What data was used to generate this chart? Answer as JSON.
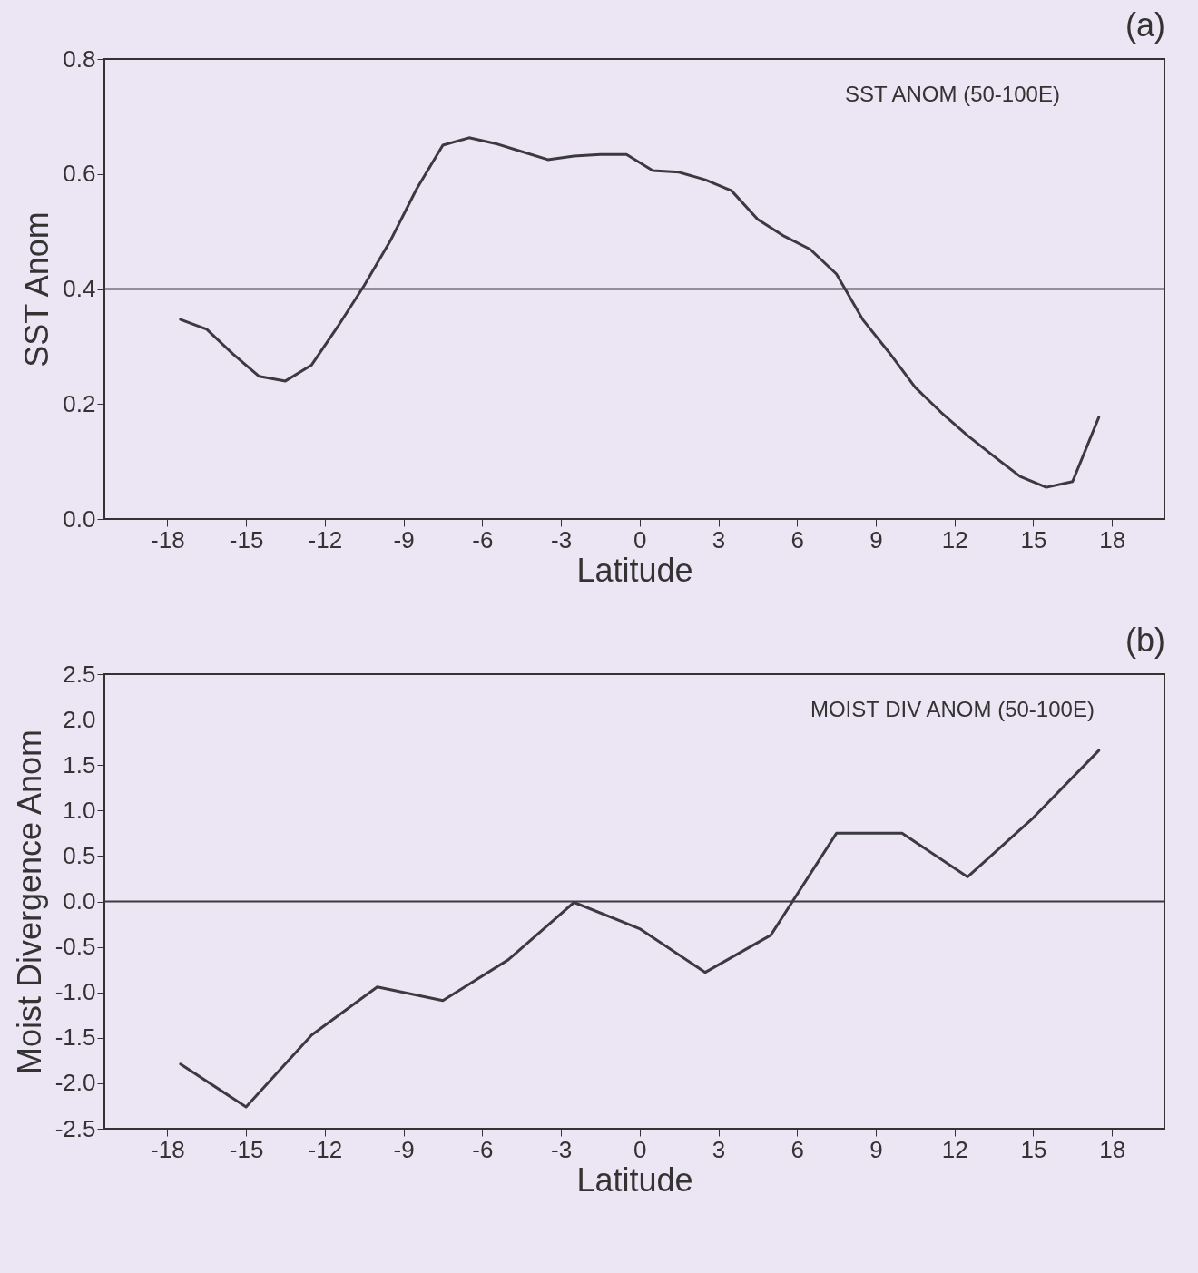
{
  "chart_data": [
    {
      "type": "line",
      "title": "(a)",
      "xlabel": "Latitude",
      "ylabel": "SST Anom",
      "annotations": [
        "SST ANOM (50-100E)"
      ],
      "x": [
        -17.5,
        -16.5,
        -15.5,
        -14.5,
        -13.5,
        -12.5,
        -11.5,
        -10.5,
        -9.5,
        -8.5,
        -7.5,
        -6.5,
        -5.5,
        -4.5,
        -3.5,
        -2.5,
        -1.5,
        -0.5,
        0.5,
        1.5,
        2.5,
        3.5,
        4.5,
        5.5,
        6.5,
        7.5,
        8.5,
        9.5,
        10.5,
        11.5,
        12.5,
        13.5,
        14.5,
        15.5,
        16.5,
        17.5
      ],
      "series": [
        {
          "color": "#3a3a40",
          "values": [
            0.347,
            0.33,
            0.287,
            0.248,
            0.24,
            0.268,
            0.335,
            0.406,
            0.484,
            0.574,
            0.65,
            0.663,
            0.653,
            0.639,
            0.625,
            0.631,
            0.634,
            0.634,
            0.606,
            0.603,
            0.59,
            0.571,
            0.521,
            0.492,
            0.469,
            0.426,
            0.347,
            0.29,
            0.229,
            0.185,
            0.145,
            0.109,
            0.074,
            0.055,
            0.065,
            0.177
          ]
        }
      ],
      "xlim": [
        -20.4,
        20
      ],
      "xticks": [
        -18,
        -15,
        -12,
        -9,
        -6,
        -3,
        0,
        3,
        6,
        9,
        12,
        15,
        18
      ],
      "ylim": [
        0,
        0.8
      ],
      "yticks": [
        {
          "value": 0,
          "label": "0.0"
        },
        0.2,
        0.4,
        0.6,
        0.8
      ],
      "ref_lines": [
        {
          "axis": "y",
          "value": 0.4,
          "color": "#3a3a40"
        }
      ],
      "grid": false
    },
    {
      "type": "line",
      "title": "(b)",
      "xlabel": "Latitude",
      "ylabel": "Moist Divergence Anom",
      "annotations": [
        "MOIST DIV ANOM (50-100E)"
      ],
      "x": [
        -17.5,
        -15,
        -12.5,
        -10,
        -7.5,
        -5,
        -2.5,
        0,
        2.5,
        5,
        7.5,
        10,
        12.5,
        15,
        17.5
      ],
      "series": [
        {
          "color": "#3a3a40",
          "values": [
            -1.79,
            -2.26,
            -1.47,
            -0.94,
            -1.09,
            -0.64,
            -0.01,
            -0.3,
            -0.78,
            -0.37,
            0.75,
            0.75,
            0.27,
            0.92,
            1.66
          ]
        }
      ],
      "xlim": [
        -20.4,
        20
      ],
      "xticks": [
        -18,
        -15,
        -12,
        -9,
        -6,
        -3,
        0,
        3,
        6,
        9,
        12,
        15,
        18
      ],
      "ylim": [
        -2.5,
        2.5
      ],
      "yticks": [
        -2.5,
        {
          "value": -2,
          "label": "-2.0"
        },
        -1.5,
        {
          "value": -1,
          "label": "-1.0"
        },
        -0.5,
        {
          "value": 0,
          "label": "0.0"
        },
        0.5,
        {
          "value": 1,
          "label": "1.0"
        },
        1.5,
        {
          "value": 2,
          "label": "2.0"
        },
        2.5
      ],
      "ref_lines": [
        {
          "axis": "y",
          "value": 0,
          "color": "#3a3a40"
        }
      ],
      "grid": false
    }
  ]
}
